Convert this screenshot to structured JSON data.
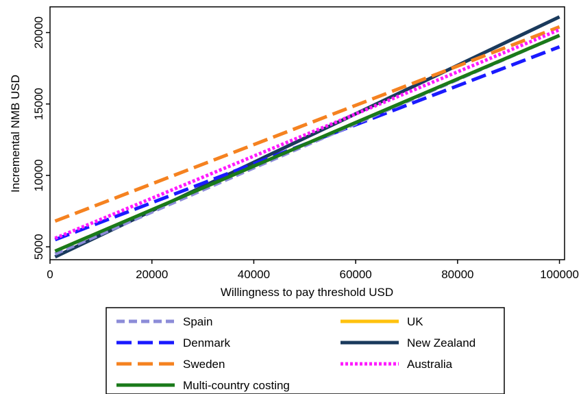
{
  "chart_data": {
    "type": "line",
    "title": "",
    "xlabel": "Willingness to pay threshold USD",
    "ylabel": "Incremental NMB USD",
    "xlim": [
      0,
      101000
    ],
    "ylim": [
      4100,
      21800
    ],
    "x_ticks": [
      0,
      20000,
      40000,
      60000,
      80000,
      100000
    ],
    "x_tick_labels": [
      "0",
      "20000",
      "40000",
      "60000",
      "80000",
      "100000"
    ],
    "y_ticks": [
      5000,
      10000,
      15000,
      20000
    ],
    "y_tick_labels": [
      "5000",
      "10000",
      "15000",
      "20000"
    ],
    "grid": false,
    "legend_position": "bottom",
    "x": [
      1000,
      100000
    ],
    "series": [
      {
        "name": "Spain",
        "values": [
          4500,
          19800
        ],
        "color": "#8c8cd8",
        "style": "short-dash"
      },
      {
        "name": "UK",
        "values": [
          4700,
          19800
        ],
        "color": "#ffc20e",
        "style": "solid"
      },
      {
        "name": "Denmark",
        "values": [
          5500,
          19000
        ],
        "color": "#1a1aff",
        "style": "long-dash"
      },
      {
        "name": "New Zealand",
        "values": [
          4300,
          21100
        ],
        "color": "#1a3a5c",
        "style": "solid"
      },
      {
        "name": "Sweden",
        "values": [
          6800,
          20400
        ],
        "color": "#f58220",
        "style": "long-dash"
      },
      {
        "name": "Australia",
        "values": [
          5600,
          20200
        ],
        "color": "#ff1aff",
        "style": "dotted"
      },
      {
        "name": "Multi-country costing",
        "values": [
          4700,
          19800
        ],
        "color": "#1a7a1a",
        "style": "solid"
      }
    ]
  }
}
